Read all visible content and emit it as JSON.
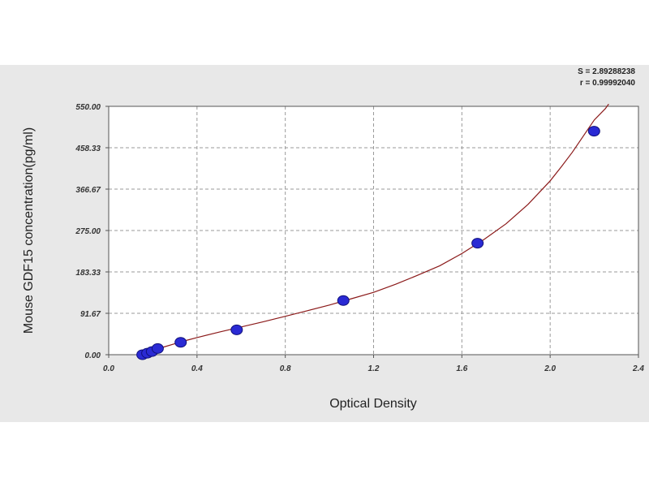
{
  "chart_data": {
    "type": "scatter",
    "title": "",
    "xlabel": "Optical Density",
    "ylabel": "Mouse  GDF15 concentration(pg/ml)",
    "xlim": [
      0.0,
      2.4
    ],
    "ylim": [
      0.0,
      550.0
    ],
    "x_ticks": [
      0.0,
      0.4,
      0.8,
      1.2,
      1.6,
      2.0,
      2.4
    ],
    "x_tick_labels": [
      "0.0",
      "0.4",
      "0.8",
      "1.2",
      "1.6",
      "2.0",
      "2.4"
    ],
    "y_ticks": [
      0.0,
      91.67,
      183.33,
      275.0,
      366.67,
      458.33,
      550.0
    ],
    "y_tick_labels": [
      "0.00",
      "91.67",
      "183.33",
      "275.00",
      "366.67",
      "458.33",
      "550.00"
    ],
    "grid": true,
    "colors": {
      "panel": "#e8e8e8",
      "plot_bg": "#ffffff",
      "grid": "#9a9a9a",
      "curve": "#8b1a1a",
      "point_fill": "#2a2ad4",
      "point_stroke": "#10107a"
    },
    "series": [
      {
        "type": "scatter",
        "x": [
          0.153,
          0.175,
          0.196,
          0.222,
          0.326,
          0.58,
          1.063,
          1.671,
          2.199
        ],
        "y": [
          0.0,
          3.4,
          6.9,
          13.7,
          27.5,
          55.0,
          120.0,
          247.0,
          495.0
        ]
      },
      {
        "type": "line",
        "x": [
          0.145,
          0.175,
          0.2,
          0.25,
          0.3,
          0.35,
          0.4,
          0.5,
          0.6,
          0.7,
          0.8,
          0.9,
          1.0,
          1.1,
          1.2,
          1.3,
          1.4,
          1.5,
          1.6,
          1.7,
          1.8,
          1.9,
          2.0,
          2.05,
          2.1,
          2.15,
          2.2,
          2.25,
          2.265
        ],
        "y": [
          0.0,
          4.0,
          8.5,
          17.0,
          24.5,
          31.5,
          38.0,
          50.0,
          61.5,
          73.0,
          85.0,
          97.5,
          110.0,
          124.0,
          138.0,
          156.0,
          176.0,
          197.0,
          224.0,
          255.0,
          290.0,
          333.0,
          385.0,
          416.0,
          448.0,
          484.0,
          520.0,
          545.0,
          555.0
        ]
      }
    ],
    "stats": {
      "line1": "S = 2.89288238",
      "line2": "r = 0.99992040"
    }
  }
}
